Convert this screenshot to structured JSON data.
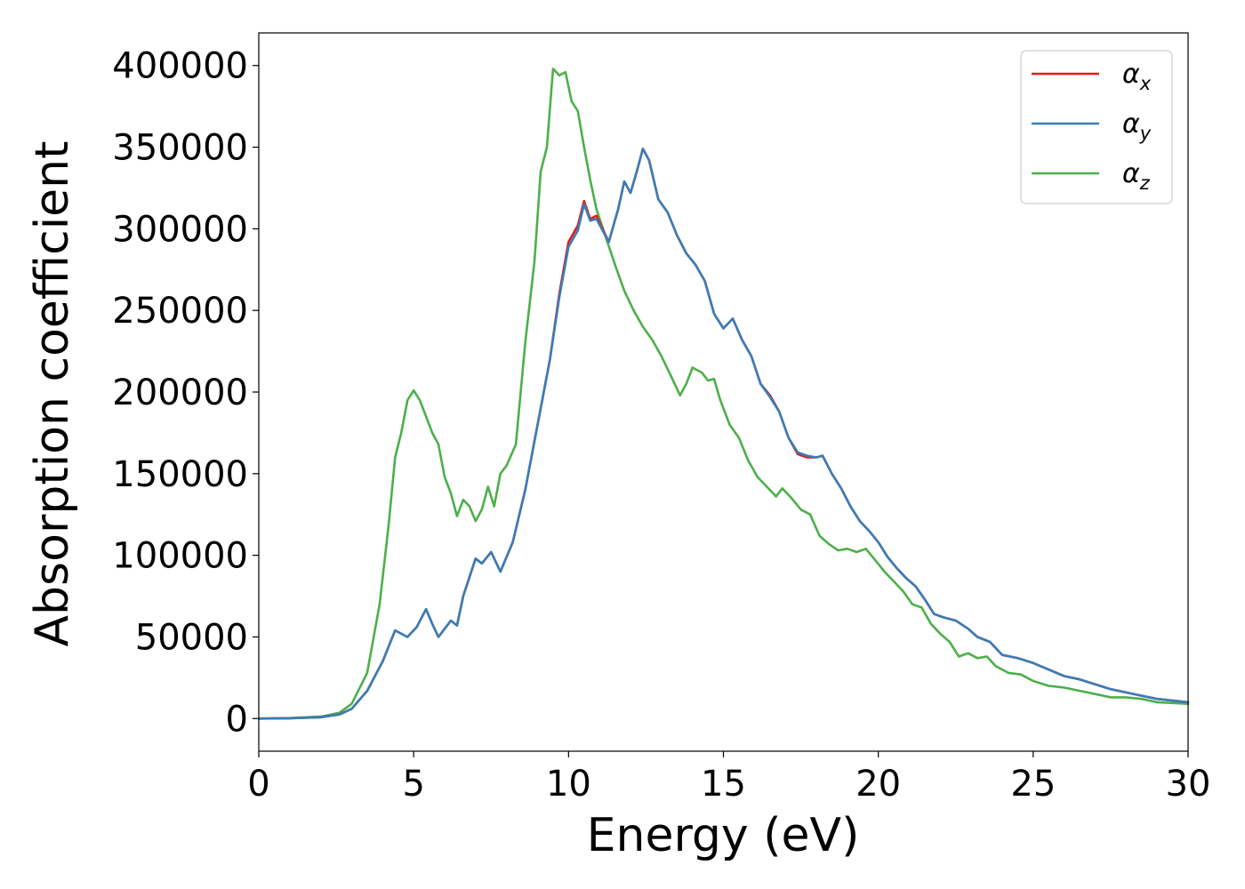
{
  "chart_data": {
    "type": "line",
    "title": "",
    "xlabel": "Energy (eV)",
    "ylabel": "Absorption coefficient",
    "xlim": [
      0,
      30
    ],
    "ylim": [
      -20000,
      420000
    ],
    "grid": false,
    "legend_position": "top-right",
    "x_ticks": [
      0,
      5,
      10,
      15,
      20,
      25,
      30
    ],
    "y_ticks": [
      0,
      50000,
      100000,
      150000,
      200000,
      250000,
      300000,
      350000,
      400000
    ],
    "x_tick_labels": [
      "0",
      "5",
      "10",
      "15",
      "20",
      "25",
      "30"
    ],
    "y_tick_labels": [
      "0",
      "50000",
      "100000",
      "150000",
      "200000",
      "250000",
      "300000",
      "350000",
      "400000"
    ],
    "series": [
      {
        "name": "α_x",
        "label_main": "α",
        "label_sub": "x",
        "color": "#e41a1c",
        "points": [
          [
            0,
            0
          ],
          [
            1,
            200
          ],
          [
            2,
            800
          ],
          [
            2.6,
            2500
          ],
          [
            3,
            6000
          ],
          [
            3.5,
            17000
          ],
          [
            4,
            35000
          ],
          [
            4.4,
            54000
          ],
          [
            4.8,
            50000
          ],
          [
            5.1,
            56000
          ],
          [
            5.4,
            67000
          ],
          [
            5.6,
            58000
          ],
          [
            5.8,
            50000
          ],
          [
            6,
            55000
          ],
          [
            6.2,
            60000
          ],
          [
            6.4,
            57000
          ],
          [
            6.6,
            75000
          ],
          [
            7,
            98000
          ],
          [
            7.2,
            95000
          ],
          [
            7.5,
            102000
          ],
          [
            7.8,
            90000
          ],
          [
            8.2,
            108000
          ],
          [
            8.6,
            140000
          ],
          [
            9,
            180000
          ],
          [
            9.4,
            220000
          ],
          [
            9.7,
            260000
          ],
          [
            10,
            292000
          ],
          [
            10.3,
            302000
          ],
          [
            10.5,
            317000
          ],
          [
            10.7,
            306000
          ],
          [
            10.9,
            308000
          ],
          [
            11.1,
            300000
          ],
          [
            11.3,
            292000
          ],
          [
            11.6,
            312000
          ],
          [
            11.8,
            329000
          ],
          [
            12,
            322000
          ],
          [
            12.2,
            335000
          ],
          [
            12.4,
            349000
          ],
          [
            12.6,
            342000
          ],
          [
            12.9,
            318000
          ],
          [
            13.2,
            310000
          ],
          [
            13.5,
            296000
          ],
          [
            13.8,
            285000
          ],
          [
            14.1,
            278000
          ],
          [
            14.4,
            268000
          ],
          [
            14.7,
            248000
          ],
          [
            15,
            239000
          ],
          [
            15.3,
            245000
          ],
          [
            15.6,
            232000
          ],
          [
            15.9,
            222000
          ],
          [
            16.2,
            205000
          ],
          [
            16.5,
            198000
          ],
          [
            16.8,
            188000
          ],
          [
            17.1,
            172000
          ],
          [
            17.4,
            162000
          ],
          [
            17.7,
            160000
          ],
          [
            18,
            160000
          ],
          [
            18.2,
            161000
          ],
          [
            18.5,
            150000
          ],
          [
            18.8,
            141000
          ],
          [
            19.1,
            130000
          ],
          [
            19.4,
            121000
          ],
          [
            19.7,
            115000
          ],
          [
            20,
            108000
          ],
          [
            20.3,
            99000
          ],
          [
            20.6,
            92000
          ],
          [
            20.9,
            86000
          ],
          [
            21.2,
            81000
          ],
          [
            21.5,
            73000
          ],
          [
            21.8,
            64000
          ],
          [
            22.1,
            62000
          ],
          [
            22.5,
            60000
          ],
          [
            22.9,
            55000
          ],
          [
            23.2,
            50000
          ],
          [
            23.6,
            47000
          ],
          [
            24,
            39000
          ],
          [
            24.5,
            37000
          ],
          [
            25,
            34000
          ],
          [
            25.5,
            30000
          ],
          [
            26,
            26000
          ],
          [
            26.5,
            24000
          ],
          [
            27,
            21000
          ],
          [
            27.5,
            18000
          ],
          [
            28,
            16000
          ],
          [
            28.5,
            14000
          ],
          [
            29,
            12000
          ],
          [
            29.5,
            11000
          ],
          [
            30,
            10000
          ]
        ]
      },
      {
        "name": "α_y",
        "label_main": "α",
        "label_sub": "y",
        "color": "#377eb8",
        "points": [
          [
            0,
            0
          ],
          [
            1,
            200
          ],
          [
            2,
            800
          ],
          [
            2.6,
            2500
          ],
          [
            3,
            6000
          ],
          [
            3.5,
            17000
          ],
          [
            4,
            35000
          ],
          [
            4.4,
            54000
          ],
          [
            4.8,
            50000
          ],
          [
            5.1,
            56000
          ],
          [
            5.4,
            67000
          ],
          [
            5.6,
            58000
          ],
          [
            5.8,
            50000
          ],
          [
            6,
            55000
          ],
          [
            6.2,
            60000
          ],
          [
            6.4,
            57000
          ],
          [
            6.6,
            75000
          ],
          [
            7,
            98000
          ],
          [
            7.2,
            95000
          ],
          [
            7.5,
            102000
          ],
          [
            7.8,
            90000
          ],
          [
            8.2,
            108000
          ],
          [
            8.6,
            140000
          ],
          [
            9,
            180000
          ],
          [
            9.4,
            220000
          ],
          [
            9.7,
            258000
          ],
          [
            10,
            289000
          ],
          [
            10.3,
            299000
          ],
          [
            10.5,
            315000
          ],
          [
            10.7,
            305000
          ],
          [
            10.9,
            306000
          ],
          [
            11.1,
            299000
          ],
          [
            11.3,
            292000
          ],
          [
            11.6,
            312000
          ],
          [
            11.8,
            329000
          ],
          [
            12,
            322000
          ],
          [
            12.2,
            335000
          ],
          [
            12.4,
            349000
          ],
          [
            12.6,
            342000
          ],
          [
            12.9,
            318000
          ],
          [
            13.2,
            310000
          ],
          [
            13.5,
            296000
          ],
          [
            13.8,
            285000
          ],
          [
            14.1,
            278000
          ],
          [
            14.4,
            268000
          ],
          [
            14.7,
            248000
          ],
          [
            15,
            239000
          ],
          [
            15.3,
            245000
          ],
          [
            15.6,
            232000
          ],
          [
            15.9,
            222000
          ],
          [
            16.2,
            205000
          ],
          [
            16.5,
            197000
          ],
          [
            16.8,
            188000
          ],
          [
            17.1,
            172000
          ],
          [
            17.4,
            163000
          ],
          [
            17.7,
            161000
          ],
          [
            18,
            160000
          ],
          [
            18.2,
            161000
          ],
          [
            18.5,
            150000
          ],
          [
            18.8,
            141000
          ],
          [
            19.1,
            130000
          ],
          [
            19.4,
            121000
          ],
          [
            19.7,
            115000
          ],
          [
            20,
            108000
          ],
          [
            20.3,
            99000
          ],
          [
            20.6,
            92000
          ],
          [
            20.9,
            86000
          ],
          [
            21.2,
            81000
          ],
          [
            21.5,
            73000
          ],
          [
            21.8,
            64000
          ],
          [
            22.1,
            62000
          ],
          [
            22.5,
            60000
          ],
          [
            22.9,
            55000
          ],
          [
            23.2,
            50000
          ],
          [
            23.6,
            47000
          ],
          [
            24,
            39000
          ],
          [
            24.5,
            37000
          ],
          [
            25,
            34000
          ],
          [
            25.5,
            30000
          ],
          [
            26,
            26000
          ],
          [
            26.5,
            24000
          ],
          [
            27,
            21000
          ],
          [
            27.5,
            18000
          ],
          [
            28,
            16000
          ],
          [
            28.5,
            14000
          ],
          [
            29,
            12000
          ],
          [
            29.5,
            11000
          ],
          [
            30,
            10000
          ]
        ]
      },
      {
        "name": "α_z",
        "label_main": "α",
        "label_sub": "z",
        "color": "#4daf4a",
        "points": [
          [
            0,
            0
          ],
          [
            1,
            300
          ],
          [
            2,
            1200
          ],
          [
            2.6,
            3500
          ],
          [
            3,
            9000
          ],
          [
            3.5,
            28000
          ],
          [
            3.9,
            70000
          ],
          [
            4.2,
            120000
          ],
          [
            4.4,
            160000
          ],
          [
            4.6,
            175000
          ],
          [
            4.8,
            195000
          ],
          [
            5,
            201000
          ],
          [
            5.2,
            195000
          ],
          [
            5.4,
            185000
          ],
          [
            5.6,
            175000
          ],
          [
            5.8,
            168000
          ],
          [
            6,
            148000
          ],
          [
            6.2,
            138000
          ],
          [
            6.4,
            124000
          ],
          [
            6.6,
            134000
          ],
          [
            6.8,
            130000
          ],
          [
            7,
            121000
          ],
          [
            7.2,
            128000
          ],
          [
            7.4,
            142000
          ],
          [
            7.6,
            130000
          ],
          [
            7.8,
            150000
          ],
          [
            8,
            155000
          ],
          [
            8.3,
            168000
          ],
          [
            8.6,
            230000
          ],
          [
            8.9,
            280000
          ],
          [
            9.1,
            335000
          ],
          [
            9.3,
            350000
          ],
          [
            9.5,
            398000
          ],
          [
            9.7,
            394000
          ],
          [
            9.9,
            396000
          ],
          [
            10.1,
            378000
          ],
          [
            10.3,
            372000
          ],
          [
            10.5,
            350000
          ],
          [
            10.7,
            330000
          ],
          [
            10.9,
            312000
          ],
          [
            11.2,
            295000
          ],
          [
            11.5,
            278000
          ],
          [
            11.8,
            262000
          ],
          [
            12.1,
            250000
          ],
          [
            12.4,
            240000
          ],
          [
            12.7,
            232000
          ],
          [
            13,
            222000
          ],
          [
            13.3,
            210000
          ],
          [
            13.6,
            198000
          ],
          [
            13.8,
            205000
          ],
          [
            14,
            215000
          ],
          [
            14.3,
            212000
          ],
          [
            14.5,
            207000
          ],
          [
            14.7,
            208000
          ],
          [
            14.9,
            195000
          ],
          [
            15.2,
            180000
          ],
          [
            15.5,
            172000
          ],
          [
            15.8,
            158000
          ],
          [
            16.1,
            148000
          ],
          [
            16.4,
            142000
          ],
          [
            16.7,
            136000
          ],
          [
            16.9,
            141000
          ],
          [
            17.2,
            135000
          ],
          [
            17.5,
            128000
          ],
          [
            17.8,
            125000
          ],
          [
            18.1,
            112000
          ],
          [
            18.4,
            107000
          ],
          [
            18.7,
            103000
          ],
          [
            19,
            104000
          ],
          [
            19.3,
            102000
          ],
          [
            19.6,
            104000
          ],
          [
            19.9,
            97000
          ],
          [
            20.2,
            90000
          ],
          [
            20.5,
            84000
          ],
          [
            20.8,
            78000
          ],
          [
            21.1,
            70000
          ],
          [
            21.4,
            68000
          ],
          [
            21.7,
            58000
          ],
          [
            22,
            52000
          ],
          [
            22.3,
            47000
          ],
          [
            22.6,
            38000
          ],
          [
            22.9,
            40000
          ],
          [
            23.2,
            37000
          ],
          [
            23.5,
            38000
          ],
          [
            23.8,
            32000
          ],
          [
            24.2,
            28000
          ],
          [
            24.6,
            27000
          ],
          [
            25,
            23000
          ],
          [
            25.5,
            20000
          ],
          [
            26,
            19000
          ],
          [
            26.5,
            17000
          ],
          [
            27,
            15000
          ],
          [
            27.5,
            13000
          ],
          [
            28,
            13000
          ],
          [
            28.5,
            12000
          ],
          [
            29,
            10000
          ],
          [
            29.5,
            9500
          ],
          [
            30,
            9000
          ]
        ]
      }
    ]
  }
}
